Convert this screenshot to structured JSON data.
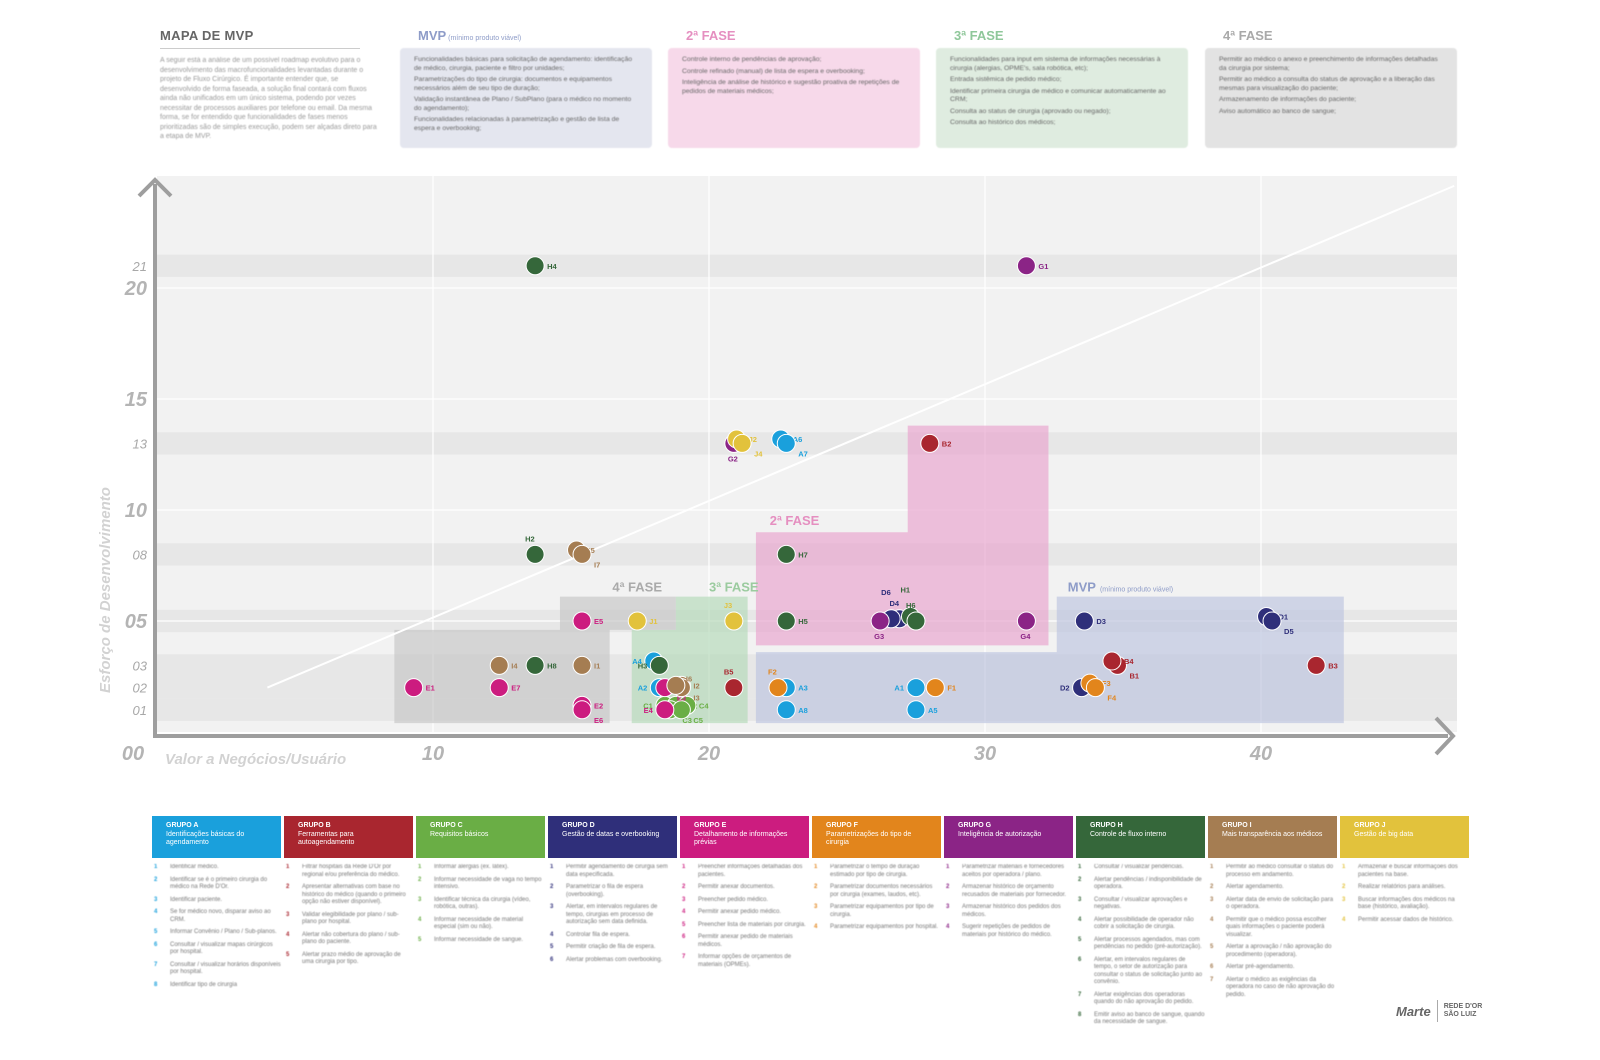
{
  "header": {
    "title": "MAPA DE MVP",
    "intro": "A seguir está a análise de um possível roadmap evolutivo para o desenvolvimento das macrofuncionalidades levantadas durante o projeto de Fluxo Cirúrgico. É importante entender que, se desenvolvido de forma faseada, a solução final contará com fluxos ainda não unificados em um único sistema, podendo por vezes necessitar de processos auxiliares por telefone ou email. Da mesma forma, se for entendido que funcionalidades de fases menos prioritizadas são de simples execução, podem ser alçadas direto para a etapa de MVP."
  },
  "phases": [
    {
      "id": "mvp",
      "title": "MVP",
      "subtitle": "(mínimo produto viável)",
      "color": "#8e9cc8",
      "bg": "#e4e6ef",
      "items": [
        "Funcionalidades básicas para solicitação de agendamento: identificação de médico, cirurgia, paciente e filtro por unidades;",
        "Parametrizações do tipo de cirurgia: documentos e equipamentos necessários além de seu tipo de duração;",
        "Validação instantânea de Plano / SubPlano (para o médico no momento do agendamento);",
        "Funcionalidades relacionadas à parametrização e gestão de lista de espera e overbooking;"
      ]
    },
    {
      "id": "f2",
      "title": "2ª FASE",
      "subtitle": "",
      "color": "#e58fc0",
      "bg": "#f7d9ea",
      "items": [
        "Controle interno de pendências de aprovação;",
        "Controle refinado (manual) de lista de espera e overbooking;",
        "Inteligência de análise de histórico e sugestão proativa de repetições de pedidos de materiais médicos;"
      ]
    },
    {
      "id": "f3",
      "title": "3ª FASE",
      "subtitle": "",
      "color": "#8fc79a",
      "bg": "#dfece0",
      "items": [
        "Funcionalidades para input em sistema de informações necessárias à cirurgia (alergias, OPME's, sala robótica, etc);",
        "Entrada sistêmica de pedido médico;",
        "Identificar primeira cirurgia de médico e comunicar automaticamente ao CRM;",
        "Consulta ao status de cirurgia (aprovado ou negado);",
        "Consulta ao histórico dos médicos;"
      ]
    },
    {
      "id": "f4",
      "title": "4ª FASE",
      "subtitle": "",
      "color": "#a9a9a9",
      "bg": "#e3e3e3",
      "items": [
        "Permitir ao médico o anexo e preenchimento de informações detalhadas da cirurgia por sistema;",
        "Permitir ao médico a consulta do status de aprovação e a liberação das mesmas para visualização do paciente;",
        "Armazenamento de informações do paciente;",
        "Aviso automático ao banco de sangue;"
      ]
    }
  ],
  "chart_data": {
    "type": "scatter",
    "xlabel": "Valor a Negócios/Usuário",
    "ylabel": "Esforço de Desenvolvimento",
    "xlim": [
      0,
      47
    ],
    "ylim": [
      0,
      25
    ],
    "x_ticks": [
      {
        "v": 0,
        "label": "00"
      },
      {
        "v": 10,
        "label": "10"
      },
      {
        "v": 20,
        "label": "20"
      },
      {
        "v": 30,
        "label": "30"
      },
      {
        "v": 40,
        "label": "40"
      }
    ],
    "y_ticks_major": [
      {
        "v": 5,
        "label": "05"
      },
      {
        "v": 10,
        "label": "10"
      },
      {
        "v": 15,
        "label": "15"
      },
      {
        "v": 20,
        "label": "20"
      }
    ],
    "y_ticks_minor": [
      {
        "v": 1,
        "label": "01"
      },
      {
        "v": 2,
        "label": "02"
      },
      {
        "v": 3,
        "label": "03"
      },
      {
        "v": 8,
        "label": "08"
      },
      {
        "v": 13,
        "label": "13"
      },
      {
        "v": 21,
        "label": "21"
      }
    ],
    "diagonal": [
      [
        4,
        2
      ],
      [
        47,
        24.6
      ]
    ],
    "regions": [
      {
        "label": "4ª FASE",
        "subtitle": "",
        "color": "#c9c9c9",
        "label_color": "#aaaaaa",
        "label_at": [
          16.5,
          6.5
        ],
        "polygon": [
          [
            8.6,
            0.4
          ],
          [
            8.6,
            4.6
          ],
          [
            14.6,
            4.6
          ],
          [
            14.6,
            6.1
          ],
          [
            18.8,
            6.1
          ],
          [
            18.8,
            4.6
          ],
          [
            16.4,
            4.6
          ],
          [
            16.4,
            0.4
          ]
        ]
      },
      {
        "label": "3ª FASE",
        "subtitle": "",
        "color": "#b9dbbd",
        "label_color": "#9bcb9f",
        "label_at": [
          20,
          6.5
        ],
        "polygon": [
          [
            17.2,
            0.4
          ],
          [
            17.2,
            4.6
          ],
          [
            18.8,
            4.6
          ],
          [
            18.8,
            6.1
          ],
          [
            21.4,
            6.1
          ],
          [
            21.4,
            0.4
          ]
        ]
      },
      {
        "label": "2ª FASE",
        "subtitle": "",
        "color": "#e9a9d0",
        "label_color": "#e58fc0",
        "label_at": [
          22.2,
          9.5
        ],
        "polygon": [
          [
            21.7,
            3.9
          ],
          [
            21.7,
            9.0
          ],
          [
            27.2,
            9.0
          ],
          [
            27.2,
            13.8
          ],
          [
            32.3,
            13.8
          ],
          [
            32.3,
            3.9
          ]
        ]
      },
      {
        "label": "MVP",
        "subtitle": "(mínimo produto viável)",
        "color": "#c1c7e0",
        "label_color": "#8e9cc8",
        "label_at": [
          33,
          6.5
        ],
        "polygon": [
          [
            21.7,
            0.4
          ],
          [
            21.7,
            3.6
          ],
          [
            32.6,
            3.6
          ],
          [
            32.6,
            6.1
          ],
          [
            43.0,
            6.1
          ],
          [
            43.0,
            0.4
          ]
        ]
      }
    ],
    "points": [
      {
        "id": "A1",
        "x": 27.5,
        "y": 2,
        "group": "A",
        "lp": "l"
      },
      {
        "id": "A2",
        "x": 18.2,
        "y": 2,
        "group": "A",
        "lp": "l"
      },
      {
        "id": "A3",
        "x": 22.8,
        "y": 2,
        "group": "A",
        "lp": "r"
      },
      {
        "id": "A4",
        "x": 18.0,
        "y": 3.2,
        "group": "A",
        "lp": "l"
      },
      {
        "id": "A5",
        "x": 27.5,
        "y": 1,
        "group": "A",
        "lp": "r"
      },
      {
        "id": "A6",
        "x": 22.6,
        "y": 13.2,
        "group": "A",
        "lp": "r"
      },
      {
        "id": "A7",
        "x": 22.8,
        "y": 13,
        "group": "A",
        "lp": "r2"
      },
      {
        "id": "A8",
        "x": 22.8,
        "y": 1,
        "group": "A",
        "lp": "r"
      },
      {
        "id": "B1",
        "x": 34.8,
        "y": 3,
        "group": "B",
        "lp": "r2"
      },
      {
        "id": "B2",
        "x": 28.0,
        "y": 13,
        "group": "B",
        "lp": "r"
      },
      {
        "id": "B3",
        "x": 42.0,
        "y": 3,
        "group": "B",
        "lp": "r"
      },
      {
        "id": "B4",
        "x": 34.6,
        "y": 3.2,
        "group": "B",
        "lp": "r"
      },
      {
        "id": "B5",
        "x": 20.9,
        "y": 2,
        "group": "B",
        "lp": "t"
      },
      {
        "id": "C1",
        "x": 18.4,
        "y": 1.2,
        "group": "C",
        "lp": "l"
      },
      {
        "id": "C2",
        "x": 18.8,
        "y": 1.2,
        "group": "C",
        "lp": "r"
      },
      {
        "id": "C3",
        "x": 18.6,
        "y": 1,
        "group": "C",
        "lp": "r2"
      },
      {
        "id": "C4",
        "x": 19.2,
        "y": 1.2,
        "group": "C",
        "lp": "r"
      },
      {
        "id": "C5",
        "x": 19.0,
        "y": 1,
        "group": "C",
        "lp": "r2"
      },
      {
        "id": "D1",
        "x": 40.2,
        "y": 5.2,
        "group": "D",
        "lp": "r"
      },
      {
        "id": "D2",
        "x": 33.5,
        "y": 2,
        "group": "D",
        "lp": "l"
      },
      {
        "id": "D3",
        "x": 33.6,
        "y": 5,
        "group": "D",
        "lp": "r"
      },
      {
        "id": "D4",
        "x": 26.9,
        "y": 5.1,
        "group": "D",
        "lp": "t"
      },
      {
        "id": "D5",
        "x": 40.4,
        "y": 5,
        "group": "D",
        "lp": "r2"
      },
      {
        "id": "D6",
        "x": 26.6,
        "y": 5.1,
        "group": "D",
        "lp": "t2"
      },
      {
        "id": "E1",
        "x": 9.3,
        "y": 2,
        "group": "E",
        "lp": "r"
      },
      {
        "id": "E2",
        "x": 15.4,
        "y": 1.2,
        "group": "E",
        "lp": "r"
      },
      {
        "id": "E3",
        "x": 18.4,
        "y": 2,
        "group": "E",
        "lp": "r2"
      },
      {
        "id": "E4",
        "x": 18.4,
        "y": 1,
        "group": "E",
        "lp": "l"
      },
      {
        "id": "E5",
        "x": 15.4,
        "y": 5,
        "group": "E",
        "lp": "r"
      },
      {
        "id": "E6",
        "x": 15.4,
        "y": 1,
        "group": "E",
        "lp": "r2"
      },
      {
        "id": "E7",
        "x": 12.4,
        "y": 2,
        "group": "E",
        "lp": "r"
      },
      {
        "id": "F1",
        "x": 28.2,
        "y": 2,
        "group": "F",
        "lp": "r"
      },
      {
        "id": "F2",
        "x": 22.5,
        "y": 2,
        "group": "F",
        "lp": "t"
      },
      {
        "id": "F3",
        "x": 33.8,
        "y": 2.2,
        "group": "F",
        "lp": "r"
      },
      {
        "id": "F4",
        "x": 34.0,
        "y": 2,
        "group": "F",
        "lp": "r2"
      },
      {
        "id": "G1",
        "x": 31.5,
        "y": 21,
        "group": "G",
        "lp": "r"
      },
      {
        "id": "G2",
        "x": 20.9,
        "y": 13,
        "group": "G",
        "lp": "b"
      },
      {
        "id": "G3",
        "x": 26.2,
        "y": 5,
        "group": "G",
        "lp": "b"
      },
      {
        "id": "G4",
        "x": 31.5,
        "y": 5,
        "group": "G",
        "lp": "b"
      },
      {
        "id": "H1",
        "x": 27.3,
        "y": 5.2,
        "group": "H",
        "lp": "t2"
      },
      {
        "id": "H2",
        "x": 13.7,
        "y": 8,
        "group": "H",
        "lp": "t"
      },
      {
        "id": "H3",
        "x": 18.2,
        "y": 3,
        "group": "H",
        "lp": "l"
      },
      {
        "id": "H4",
        "x": 13.7,
        "y": 21,
        "group": "H",
        "lp": "r"
      },
      {
        "id": "H5",
        "x": 22.8,
        "y": 5,
        "group": "H",
        "lp": "r"
      },
      {
        "id": "H6",
        "x": 27.5,
        "y": 5,
        "group": "H",
        "lp": "t"
      },
      {
        "id": "H7",
        "x": 22.8,
        "y": 8,
        "group": "H",
        "lp": "r"
      },
      {
        "id": "H8",
        "x": 13.7,
        "y": 3,
        "group": "H",
        "lp": "r"
      },
      {
        "id": "I1",
        "x": 15.4,
        "y": 3,
        "group": "I",
        "lp": "r"
      },
      {
        "id": "I2",
        "x": 19.0,
        "y": 2.1,
        "group": "I",
        "lp": "r"
      },
      {
        "id": "I3",
        "x": 19.0,
        "y": 2,
        "group": "I",
        "lp": "r2"
      },
      {
        "id": "I4",
        "x": 12.4,
        "y": 3,
        "group": "I",
        "lp": "r"
      },
      {
        "id": "I5",
        "x": 15.2,
        "y": 8.2,
        "group": "I",
        "lp": "r"
      },
      {
        "id": "I6",
        "x": 18.8,
        "y": 2.1,
        "group": "I",
        "lp": "rf"
      },
      {
        "id": "I7",
        "x": 15.4,
        "y": 8,
        "group": "I",
        "lp": "r2"
      },
      {
        "id": "J1",
        "x": 17.4,
        "y": 5,
        "group": "J",
        "lp": "r"
      },
      {
        "id": "J2",
        "x": 21.0,
        "y": 13.2,
        "group": "J",
        "lp": "r"
      },
      {
        "id": "J3",
        "x": 20.9,
        "y": 5,
        "group": "J",
        "lp": "t"
      },
      {
        "id": "J4",
        "x": 21.2,
        "y": 13,
        "group": "J",
        "lp": "r2"
      }
    ]
  },
  "groups": [
    {
      "key": "A",
      "code": "GRUPO A",
      "name": "Identificações básicas do agendamento",
      "color": "#1aa0dc",
      "items": [
        "Identificar médico.",
        "Identificar se é o primeiro cirurgia do médico na Rede D'Or.",
        "Identificar paciente.",
        "Se for médico novo, disparar aviso ao CRM.",
        "Informar Convênio / Plano / Sub-planos.",
        "Consultar / visualizar mapas cirúrgicos por hospital.",
        "Consultar / visualizar horários disponíveis por hospital.",
        "Identificar tipo de cirurgia"
      ]
    },
    {
      "key": "B",
      "code": "GRUPO B",
      "name": "Ferramentas para autoagendamento",
      "color": "#a9262f",
      "items": [
        "Filtrar hospitais da Rede D'Or por regional e/ou preferência do médico.",
        "Apresentar alternativas com base no histórico do médico (quando o primeiro opção não estiver disponível).",
        "Validar elegibilidade por plano / sub-plano por hospital.",
        "Alertar não cobertura do plano / sub-plano do paciente.",
        "Alertar prazo médio de aprovação de uma cirurgia por tipo."
      ]
    },
    {
      "key": "C",
      "code": "GRUPO C",
      "name": "Requisitos básicos",
      "color": "#6aae45",
      "items": [
        "Informar alergias (ex. látex).",
        "Informar necessidade de vaga no tempo intensivo.",
        "Identificar técnica da cirurgia (vídeo, robótica, outras).",
        "Informar necessidade de material especial (sim ou não).",
        "Informar necessidade de sangue."
      ]
    },
    {
      "key": "D",
      "code": "GRUPO D",
      "name": "Gestão de datas e overbooking",
      "color": "#2f2f7a",
      "items": [
        "Permitir agendamento de cirurgia sem data especificada.",
        "Parametrizar o fila de espera (overbooking).",
        "Alertar, em intervalos regulares de tempo, cirurgias em processo de autorização sem data definida.",
        "Controlar fila de espera.",
        "Permitir criação de fila de espera.",
        "Alertar problemas com overbooking."
      ]
    },
    {
      "key": "E",
      "code": "GRUPO E",
      "name": "Detalhamento de informações prévias",
      "color": "#cc1c7f",
      "items": [
        "Preencher informações detalhadas dos pacientes.",
        "Permitir anexar documentos.",
        "Preencher pedido médico.",
        "Permitir anexar pedido médico.",
        "Preencher lista de materiais por cirurgia.",
        "Permitir anexar pedido de materiais médicos.",
        "Informar opções de orçamentos de materiais (OPMEs)."
      ]
    },
    {
      "key": "F",
      "code": "GRUPO F",
      "name": "Parametrizações do tipo de cirurgia",
      "color": "#e2851c",
      "items": [
        "Parametrizar o tempo de duração estimado por tipo de cirurgia.",
        "Parametrizar documentos necessários por cirurgia (exames, laudos, etc).",
        "Parametrizar equipamentos por tipo de cirurgia.",
        "Parametrizar equipamentos por hospital."
      ]
    },
    {
      "key": "G",
      "code": "GRUPO G",
      "name": "Inteligência de autorização",
      "color": "#8b2486",
      "items": [
        "Parametrizar materiais e fornecedores aceitos por operadora / plano.",
        "Armazenar histórico de orçamento recusados de materiais por fornecedor.",
        "Armazenar histórico dos pedidos dos médicos.",
        "Sugerir repetições de pedidos de materiais por histórico do médico."
      ]
    },
    {
      "key": "H",
      "code": "GRUPO H",
      "name": "Controle de fluxo interno",
      "color": "#35673a",
      "items": [
        "Consultar / visualizar pendências.",
        "Alertar pendências / indisponibilidade de operadora.",
        "Consultar / visualizar aprovações e negativas.",
        "Alertar possibilidade de operador não cobrir a solicitação de cirurgia.",
        "Alertar processos agendados, mas com pendências no pedido (pré-autorização).",
        "Alertar, em intervalos regulares de tempo, o setor de autorização para consultar o status de solicitação junto ao convênio.",
        "Alertar exigências dos operadoras quando do não aprovação do pedido.",
        "Emitir aviso ao banco de sangue, quando da necessidade de sangue."
      ]
    },
    {
      "key": "I",
      "code": "GRUPO I",
      "name": "Mais transparência aos médicos",
      "color": "#a57d52",
      "items": [
        "Permitir ao médico consultar o status do processo em andamento.",
        "Alertar agendamento.",
        "Alertar data de envio de solicitação para o operadora.",
        "Permitir que o médico possa escolher quais informações o paciente poderá visualizar.",
        "Alertar a aprovação / não aprovação do procedimento (operadora).",
        "Alertar pré-agendamento.",
        "Alertar o médico as exigências da operadora no caso de não aprovação do pedido."
      ]
    },
    {
      "key": "J",
      "code": "GRUPO J",
      "name": "Gestão de big data",
      "color": "#e2c23c",
      "items": [
        "Armazenar e buscar informações dos pacientes na base.",
        "Realizar relatórios para análises.",
        "Buscar informações dos médicos na base (histórico, avaliação).",
        "Permitir acessar dados de histórico."
      ]
    }
  ],
  "logo": {
    "brand": "Marte",
    "partner_line1": "REDE D'OR",
    "partner_line2": "SÃO LUIZ"
  }
}
